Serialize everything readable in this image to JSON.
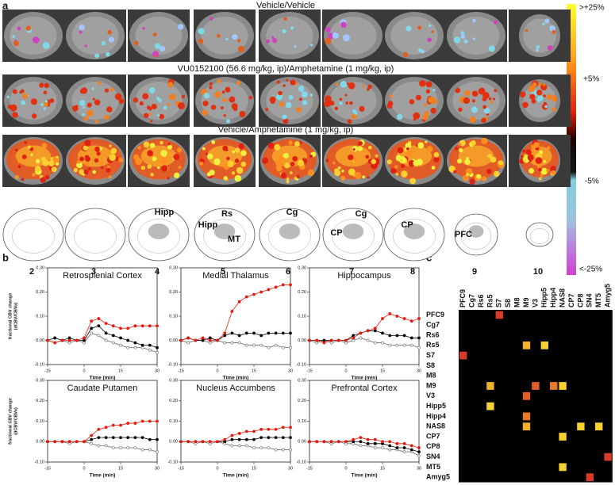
{
  "panel_labels": [
    "a",
    "b",
    "c"
  ],
  "panel_a": {
    "conditions": [
      "Vehicle/Vehicle",
      "VU0152100 (56.6 mg/kg, ip)/Amphetamine (1 mg/kg, ip)",
      "Vehicle/Amphetamine (1 mg/kg, ip)"
    ],
    "colorbar_labels": [
      ">+25%",
      "+5%",
      "-5%",
      "<-25%"
    ],
    "atlas": [
      {
        "slice": 2
      },
      {
        "slice": 3
      },
      {
        "slice": 4,
        "regions": [
          "Hipp"
        ]
      },
      {
        "slice": 5,
        "regions": [
          "Hipp",
          "Rs",
          "MT"
        ]
      },
      {
        "slice": 6,
        "regions": [
          "Cg"
        ]
      },
      {
        "slice": 7,
        "regions": [
          "Cg",
          "CP"
        ]
      },
      {
        "slice": 8,
        "regions": [
          "CP"
        ]
      },
      {
        "slice": 9,
        "regions": [
          "PFC"
        ]
      },
      {
        "slice": 10
      }
    ]
  },
  "chart_data": [
    {
      "type": "line",
      "title": "Retrosplenial Cortex",
      "x_label": "Time (min)",
      "y_label": [
        "fractional CBV change",
        "(dCBV/CBVo)"
      ],
      "x": [
        -15,
        -12,
        -9,
        -6,
        -3,
        0,
        3,
        6,
        9,
        12,
        15,
        18,
        21,
        24,
        27,
        30
      ],
      "xlim": [
        -15,
        30
      ],
      "xticks": [
        -15,
        0,
        15,
        30
      ],
      "ylim": [
        -0.1,
        0.3
      ],
      "yticks": [
        {
          "value": -0.1,
          "label": "-0.10"
        },
        {
          "value": 0,
          "label": "0.00"
        },
        {
          "value": 0.1,
          "label": "0.10"
        },
        {
          "value": 0.2,
          "label": "0.20"
        },
        {
          "value": 0.3,
          "label": "0.30"
        }
      ],
      "series": [
        {
          "color": "#e8180c",
          "marker": "filled",
          "values": [
            0,
            -0.01,
            0,
            0,
            0,
            0.01,
            0.08,
            0.09,
            0.07,
            0.06,
            0.05,
            0.05,
            0.06,
            0.06,
            0.06,
            0.06
          ]
        },
        {
          "color": "#000000",
          "marker": "filled",
          "values": [
            0,
            0.01,
            0,
            0.01,
            0,
            0,
            0.05,
            0.06,
            0.03,
            0.02,
            0.01,
            0,
            -0.01,
            -0.02,
            -0.02,
            -0.03
          ]
        },
        {
          "color": "#666666",
          "marker": "open",
          "values": [
            0,
            -0.01,
            0,
            -0.01,
            0,
            -0.01,
            0.03,
            0.02,
            0,
            -0.01,
            -0.02,
            -0.03,
            -0.03,
            -0.03,
            -0.04,
            -0.05
          ]
        }
      ]
    },
    {
      "type": "line",
      "title": "Medial Thalamus",
      "x_label": "Time (min)",
      "x": [
        -15,
        -12,
        -9,
        -6,
        -3,
        0,
        3,
        6,
        9,
        12,
        15,
        18,
        21,
        24,
        27,
        30
      ],
      "xlim": [
        -15,
        30
      ],
      "xticks": [
        -15,
        0,
        15,
        30
      ],
      "ylim": [
        -0.1,
        0.3
      ],
      "yticks": [
        {
          "value": -0.1,
          "label": "-0.10"
        },
        {
          "value": 0,
          "label": "0.00"
        },
        {
          "value": 0.1,
          "label": "0.10"
        },
        {
          "value": 0.2,
          "label": "0.20"
        },
        {
          "value": 0.3,
          "label": "0.30"
        }
      ],
      "series": [
        {
          "color": "#e8180c",
          "marker": "filled",
          "values": [
            0,
            0.01,
            0,
            0.01,
            0,
            0,
            0.03,
            0.12,
            0.16,
            0.18,
            0.19,
            0.2,
            0.21,
            0.22,
            0.23,
            0.23
          ]
        },
        {
          "color": "#000000",
          "marker": "filled",
          "values": [
            0,
            0.01,
            0,
            0,
            0.01,
            0,
            0.02,
            0.03,
            0.02,
            0.03,
            0.03,
            0.02,
            0.03,
            0.03,
            0.03,
            0.03
          ]
        },
        {
          "color": "#666666",
          "marker": "open",
          "values": [
            0,
            -0.01,
            0,
            0,
            -0.01,
            0,
            -0.01,
            -0.01,
            -0.01,
            -0.02,
            -0.02,
            -0.02,
            -0.03,
            -0.02,
            -0.03,
            -0.03
          ]
        }
      ]
    },
    {
      "type": "line",
      "title": "Hippocampus",
      "x_label": "Time (min)",
      "x": [
        -15,
        -12,
        -9,
        -6,
        -3,
        0,
        3,
        6,
        9,
        12,
        15,
        18,
        21,
        24,
        27,
        30
      ],
      "xlim": [
        -15,
        30
      ],
      "xticks": [
        -15,
        0,
        15,
        30
      ],
      "ylim": [
        -0.1,
        0.3
      ],
      "yticks": [
        {
          "value": -0.1,
          "label": "-0.10"
        },
        {
          "value": 0,
          "label": "0.00"
        },
        {
          "value": 0.1,
          "label": "0.10"
        },
        {
          "value": 0.2,
          "label": "0.20"
        },
        {
          "value": 0.3,
          "label": "0.30"
        }
      ],
      "series": [
        {
          "color": "#e8180c",
          "marker": "filled",
          "values": [
            0,
            0,
            -0.01,
            0,
            0,
            0,
            0.01,
            0.03,
            0.04,
            0.05,
            0.09,
            0.11,
            0.1,
            0.09,
            0.08,
            0.09
          ]
        },
        {
          "color": "#000000",
          "marker": "filled",
          "values": [
            0,
            0,
            0,
            0,
            0,
            0,
            0.02,
            0.03,
            0.04,
            0.04,
            0.03,
            0.02,
            0.02,
            0.02,
            0.01,
            0.01
          ]
        },
        {
          "color": "#666666",
          "marker": "open",
          "values": [
            0,
            -0.01,
            0,
            -0.01,
            0,
            -0.01,
            0,
            0.01,
            0,
            -0.01,
            -0.01,
            -0.02,
            -0.02,
            -0.02,
            -0.02,
            -0.03
          ]
        }
      ]
    },
    {
      "type": "line",
      "title": "Caudate Putamen",
      "x_label": "Time (min)",
      "y_label": [
        "fractional CBV change",
        "(dCBV/CBVo)"
      ],
      "x": [
        -15,
        -12,
        -9,
        -6,
        -3,
        0,
        3,
        6,
        9,
        12,
        15,
        18,
        21,
        24,
        27,
        30
      ],
      "xlim": [
        -15,
        30
      ],
      "xticks": [
        -15,
        0,
        15,
        30
      ],
      "ylim": [
        -0.1,
        0.3
      ],
      "yticks": [
        {
          "value": -0.1,
          "label": "-0.10"
        },
        {
          "value": 0,
          "label": "0.00"
        },
        {
          "value": 0.1,
          "label": "0.10"
        },
        {
          "value": 0.2,
          "label": "0.20"
        },
        {
          "value": 0.3,
          "label": "0.30"
        }
      ],
      "series": [
        {
          "color": "#e8180c",
          "marker": "filled",
          "values": [
            0,
            0,
            0,
            0,
            0,
            0,
            0.03,
            0.06,
            0.07,
            0.08,
            0.08,
            0.09,
            0.09,
            0.1,
            0.1,
            0.1
          ]
        },
        {
          "color": "#000000",
          "marker": "filled",
          "values": [
            0,
            0,
            0,
            0,
            0,
            0,
            0.01,
            0.02,
            0.02,
            0.02,
            0.02,
            0.02,
            0.02,
            0.02,
            0.01,
            0.01
          ]
        },
        {
          "color": "#666666",
          "marker": "open",
          "values": [
            0,
            0,
            0,
            -0.01,
            0,
            0,
            -0.01,
            -0.02,
            -0.02,
            -0.03,
            -0.03,
            -0.03,
            -0.03,
            -0.04,
            -0.04,
            -0.05
          ]
        }
      ]
    },
    {
      "type": "line",
      "title": "Nucleus Accumbens",
      "x_label": "Time (min)",
      "x": [
        -15,
        -12,
        -9,
        -6,
        -3,
        0,
        3,
        6,
        9,
        12,
        15,
        18,
        21,
        24,
        27,
        30
      ],
      "xlim": [
        -15,
        30
      ],
      "xticks": [
        -15,
        0,
        15,
        30
      ],
      "ylim": [
        -0.1,
        0.3
      ],
      "yticks": [
        {
          "value": -0.1,
          "label": "-0.10"
        },
        {
          "value": 0,
          "label": "0.00"
        },
        {
          "value": 0.1,
          "label": "0.10"
        },
        {
          "value": 0.2,
          "label": "0.20"
        },
        {
          "value": 0.3,
          "label": "0.30"
        }
      ],
      "series": [
        {
          "color": "#e8180c",
          "marker": "filled",
          "values": [
            0,
            0,
            0,
            0,
            0,
            0,
            0.01,
            0.03,
            0.04,
            0.05,
            0.05,
            0.06,
            0.06,
            0.06,
            0.07,
            0.07
          ]
        },
        {
          "color": "#000000",
          "marker": "filled",
          "values": [
            0,
            0,
            0,
            0,
            0,
            0,
            0,
            0.01,
            0.01,
            0.01,
            0.01,
            0.02,
            0.02,
            0.02,
            0.02,
            0.02
          ]
        },
        {
          "color": "#666666",
          "marker": "open",
          "values": [
            0,
            0,
            -0.01,
            0,
            -0.01,
            0,
            -0.01,
            -0.02,
            -0.02,
            -0.02,
            -0.03,
            -0.03,
            -0.03,
            -0.04,
            -0.04,
            -0.04
          ]
        }
      ]
    },
    {
      "type": "line",
      "title": "Prefrontal Cortex",
      "x_label": "Time (min)",
      "x": [
        -15,
        -12,
        -9,
        -6,
        -3,
        0,
        3,
        6,
        9,
        12,
        15,
        18,
        21,
        24,
        27,
        30
      ],
      "xlim": [
        -15,
        30
      ],
      "xticks": [
        -15,
        0,
        15,
        30
      ],
      "ylim": [
        -0.1,
        0.3
      ],
      "yticks": [
        {
          "value": -0.1,
          "label": "-0.10"
        },
        {
          "value": 0,
          "label": "0.00"
        },
        {
          "value": 0.1,
          "label": "0.10"
        },
        {
          "value": 0.2,
          "label": "0.20"
        },
        {
          "value": 0.3,
          "label": "0.30"
        }
      ],
      "series": [
        {
          "color": "#e8180c",
          "marker": "filled",
          "values": [
            0,
            0,
            0,
            0,
            0,
            0,
            0.01,
            0.02,
            0.01,
            0.01,
            0,
            0,
            -0.01,
            -0.01,
            -0.02,
            -0.03
          ]
        },
        {
          "color": "#000000",
          "marker": "filled",
          "values": [
            0,
            0,
            0,
            0,
            0,
            0,
            0,
            0,
            -0.01,
            -0.01,
            -0.01,
            -0.02,
            -0.03,
            -0.03,
            -0.04,
            -0.05
          ]
        },
        {
          "color": "#666666",
          "marker": "open",
          "values": [
            0,
            0,
            0,
            -0.01,
            0,
            -0.01,
            -0.01,
            -0.02,
            -0.02,
            -0.03,
            -0.03,
            -0.04,
            -0.04,
            -0.05,
            -0.05,
            -0.07
          ]
        }
      ]
    },
    {
      "type": "heatmap",
      "background": "#000000",
      "categories": [
        "PFC9",
        "Cg7",
        "Rs6",
        "Rs5",
        "S7",
        "S8",
        "M8",
        "M9",
        "V3",
        "Hipp5",
        "Hipp4",
        "NAS8",
        "CP7",
        "CP8",
        "SN4",
        "MT5",
        "Amyg5"
      ],
      "row_labels": [
        "PFC9",
        "Cg7",
        "Rs6",
        "Rs5",
        "S7",
        "S8",
        "M8",
        "M9",
        "V3",
        "Hipp5",
        "Hipp4",
        "NAS8",
        "CP7",
        "CP8",
        "SN4",
        "MT5",
        "Amyg5"
      ],
      "cells": [
        {
          "row": 0,
          "col": 4,
          "color": "#d83a2a"
        },
        {
          "row": 3,
          "col": 7,
          "color": "#f2b12a"
        },
        {
          "row": 3,
          "col": 9,
          "color": "#f6d130"
        },
        {
          "row": 4,
          "col": 0,
          "color": "#d83a2a"
        },
        {
          "row": 7,
          "col": 3,
          "color": "#f2b12a"
        },
        {
          "row": 7,
          "col": 8,
          "color": "#e0602a"
        },
        {
          "row": 7,
          "col": 10,
          "color": "#e8782a"
        },
        {
          "row": 7,
          "col": 11,
          "color": "#f6d130"
        },
        {
          "row": 8,
          "col": 7,
          "color": "#e0602a"
        },
        {
          "row": 9,
          "col": 3,
          "color": "#f6d130"
        },
        {
          "row": 10,
          "col": 7,
          "color": "#e8782a"
        },
        {
          "row": 11,
          "col": 7,
          "color": "#f2b12a"
        },
        {
          "row": 11,
          "col": 13,
          "color": "#f6d130"
        },
        {
          "row": 11,
          "col": 15,
          "color": "#f6d130"
        },
        {
          "row": 12,
          "col": 11,
          "color": "#f6d130"
        },
        {
          "row": 14,
          "col": 16,
          "color": "#d83a2a"
        },
        {
          "row": 15,
          "col": 11,
          "color": "#f6d130"
        },
        {
          "row": 16,
          "col": 14,
          "color": "#d83a2a"
        }
      ]
    }
  ]
}
